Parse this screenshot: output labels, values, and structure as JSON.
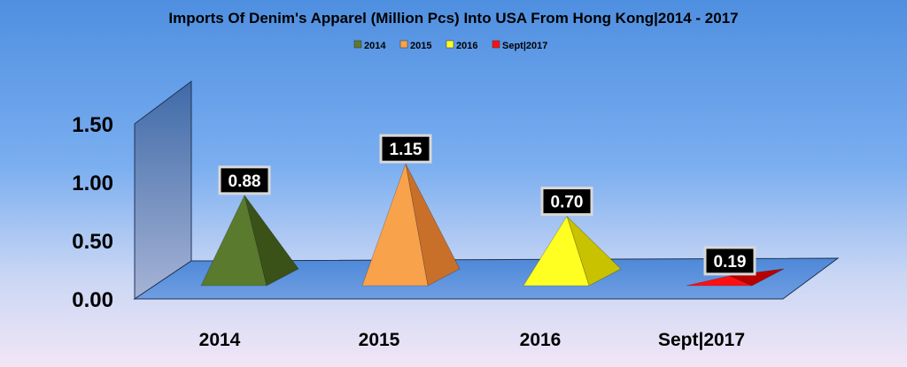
{
  "chart_data": {
    "type": "bar",
    "title": "Imports Of Denim's Apparel (Million Pcs) Into USA From Hong Kong|2014 - 2017",
    "categories": [
      "2014",
      "2015",
      "2016",
      "Sept|2017"
    ],
    "values": [
      0.88,
      1.15,
      0.7,
      0.19
    ],
    "value_labels": [
      "0.88",
      "1.15",
      "0.70",
      "0.19"
    ],
    "legend": [
      "2014",
      "2015",
      "2016",
      "Sept|2017"
    ],
    "legend_position": "top",
    "colors": [
      "#5a7a2e",
      "#f9a24c",
      "#ffff22",
      "#ff1010"
    ],
    "side_colors": [
      "#3a5218",
      "#c8702a",
      "#c8c200",
      "#b80000"
    ],
    "ylim": [
      0,
      1.5
    ],
    "yticks": [
      "0.00",
      "0.50",
      "1.00",
      "1.50"
    ],
    "ytick_values": [
      0,
      0.5,
      1.0,
      1.5
    ],
    "xlabel": "",
    "ylabel": "",
    "mark_shape": "3d-pyramid",
    "grid": false
  }
}
